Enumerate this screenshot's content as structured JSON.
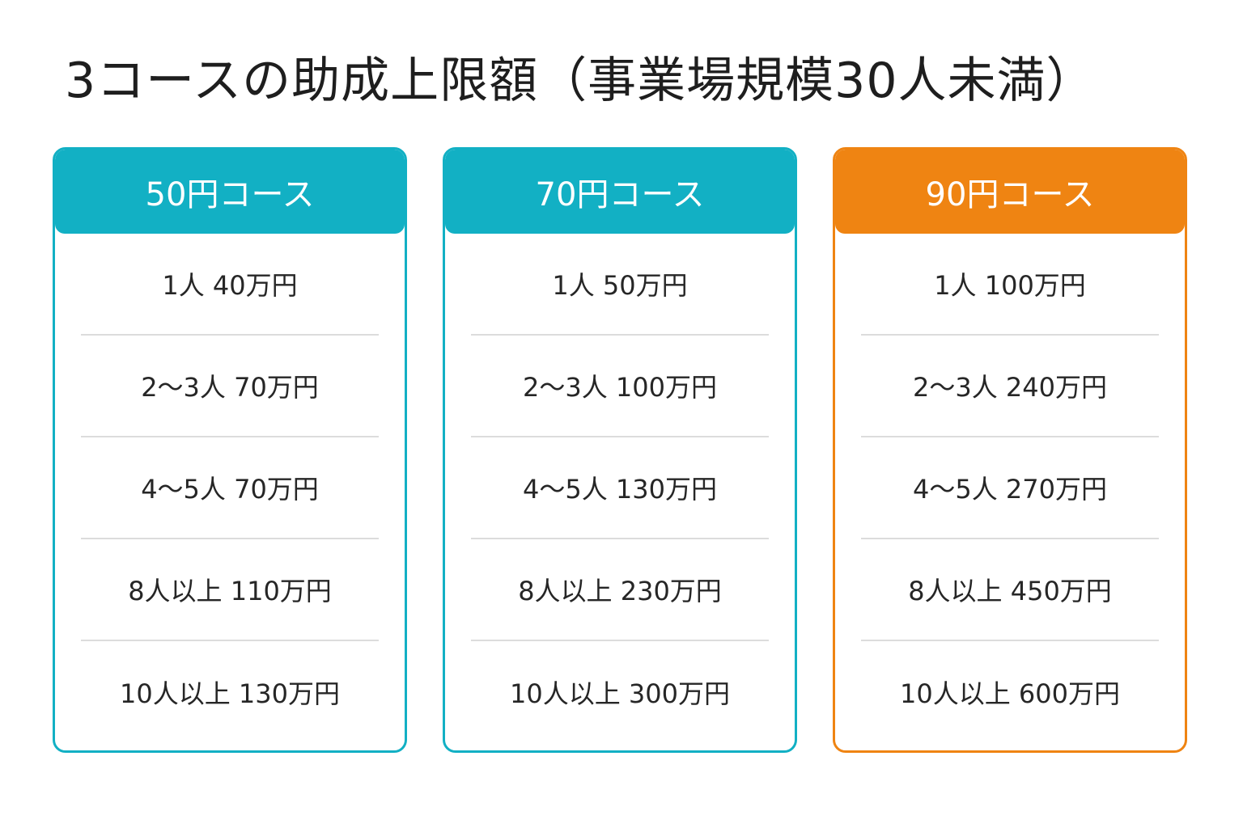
{
  "title": "3コースの助成上限額（事業場規模30人未満）",
  "colors": {
    "teal": "#12b0c4",
    "orange": "#ef8412"
  },
  "courses": [
    {
      "name": "50円コース",
      "rows": [
        "1人 40万円",
        "2〜3人 70万円",
        "4〜5人 70万円",
        "8人以上 110万円",
        "10人以上 130万円"
      ]
    },
    {
      "name": "70円コース",
      "rows": [
        "1人 50万円",
        "2〜3人 100万円",
        "4〜5人 130万円",
        "8人以上 230万円",
        "10人以上 300万円"
      ]
    },
    {
      "name": "90円コース",
      "rows": [
        "1人 100万円",
        "2〜3人 240万円",
        "4〜5人 270万円",
        "8人以上 450万円",
        "10人以上 600万円"
      ]
    }
  ]
}
